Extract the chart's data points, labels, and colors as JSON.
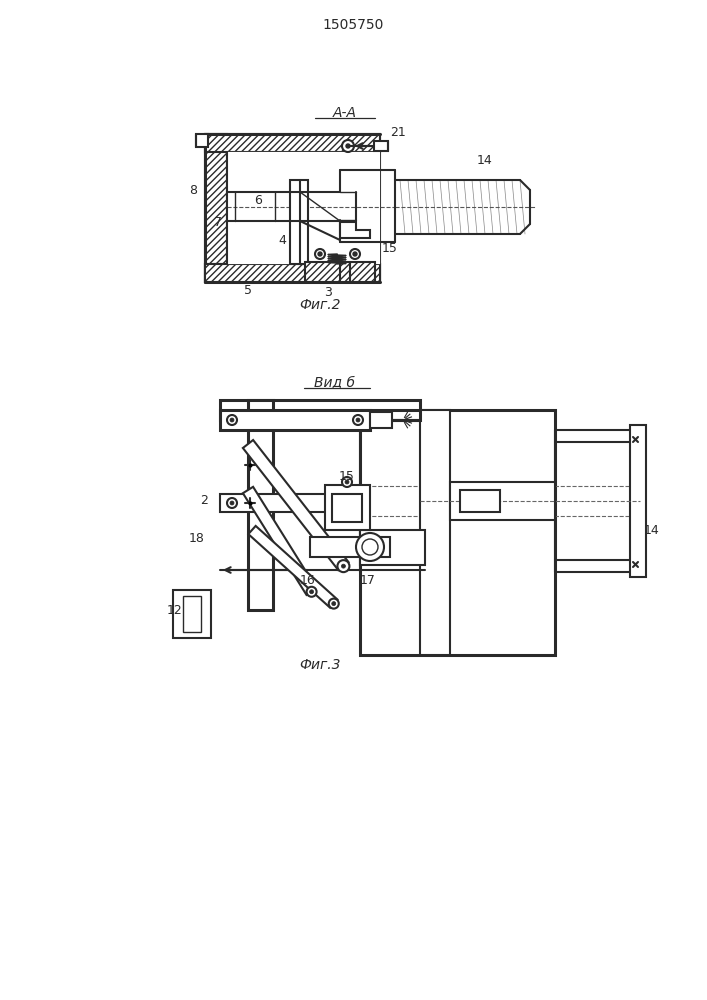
{
  "title": "1505750",
  "fig2_label": "Фиг.2",
  "fig3_label": "Фиг.3",
  "section_label": "А-А",
  "view_label": "Вид б",
  "bg_color": "#ffffff",
  "line_color": "#2a2a2a",
  "figsize": [
    7.07,
    10.0
  ],
  "dpi": 100
}
